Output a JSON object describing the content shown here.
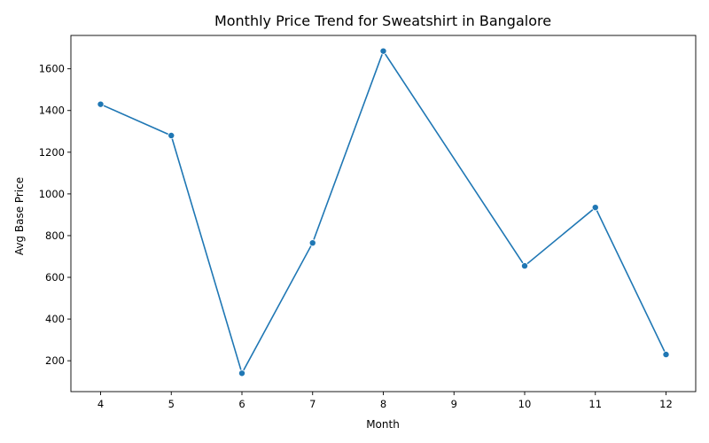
{
  "chart_data": {
    "type": "line",
    "title": "Monthly Price Trend for Sweatshirt in Bangalore",
    "xlabel": "Month",
    "ylabel": "Avg Base Price",
    "x": [
      4,
      5,
      6,
      7,
      8,
      10,
      11,
      12
    ],
    "series": [
      {
        "values": [
          1430,
          1280,
          140,
          765,
          1685,
          655,
          935,
          230
        ],
        "color": "#1f77b4"
      }
    ],
    "xticks": [
      4,
      5,
      6,
      7,
      8,
      9,
      10,
      11,
      12
    ],
    "yticks": [
      200,
      400,
      600,
      800,
      1000,
      1200,
      1400,
      1600
    ],
    "xlim": [
      3.58,
      12.42
    ],
    "ylim": [
      52,
      1760
    ],
    "grid": false,
    "marker": "circle"
  }
}
